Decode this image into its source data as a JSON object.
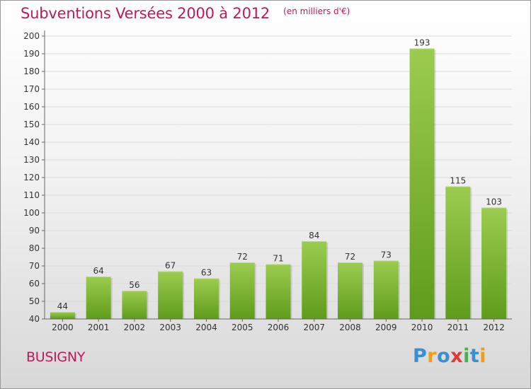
{
  "header": {
    "title": "Subventions Versées 2000 à 2012",
    "subtitle": "(en milliers d'€)"
  },
  "footer": {
    "commune": "BUSIGNY",
    "logo_letters": [
      "P",
      "r",
      "o",
      "x",
      "i",
      "t",
      "i"
    ],
    "logo_colors": [
      "#3a8fd1",
      "#f39c12",
      "#3a8fd1",
      "#e53935",
      "#4caf50",
      "#3a8fd1",
      "#f39c12"
    ]
  },
  "colors": {
    "title": "#c2185b",
    "bar_top": "#9ccc4f",
    "bar_bottom": "#5f9c1c",
    "grid": "#dcdcdc",
    "axis": "#666666"
  },
  "chart_data": {
    "type": "bar",
    "title": "Subventions Versées 2000 à 2012",
    "subtitle": "(en milliers d'€)",
    "categories": [
      "2000",
      "2001",
      "2002",
      "2003",
      "2004",
      "2005",
      "2006",
      "2007",
      "2008",
      "2009",
      "2010",
      "2011",
      "2012"
    ],
    "values": [
      44,
      64,
      56,
      67,
      63,
      72,
      71,
      84,
      72,
      73,
      193,
      115,
      103
    ],
    "ylim": [
      40,
      200
    ],
    "yticks": [
      40,
      50,
      60,
      70,
      80,
      90,
      100,
      110,
      120,
      130,
      140,
      150,
      160,
      170,
      180,
      190,
      200
    ],
    "grid": true,
    "data_labels": true
  }
}
